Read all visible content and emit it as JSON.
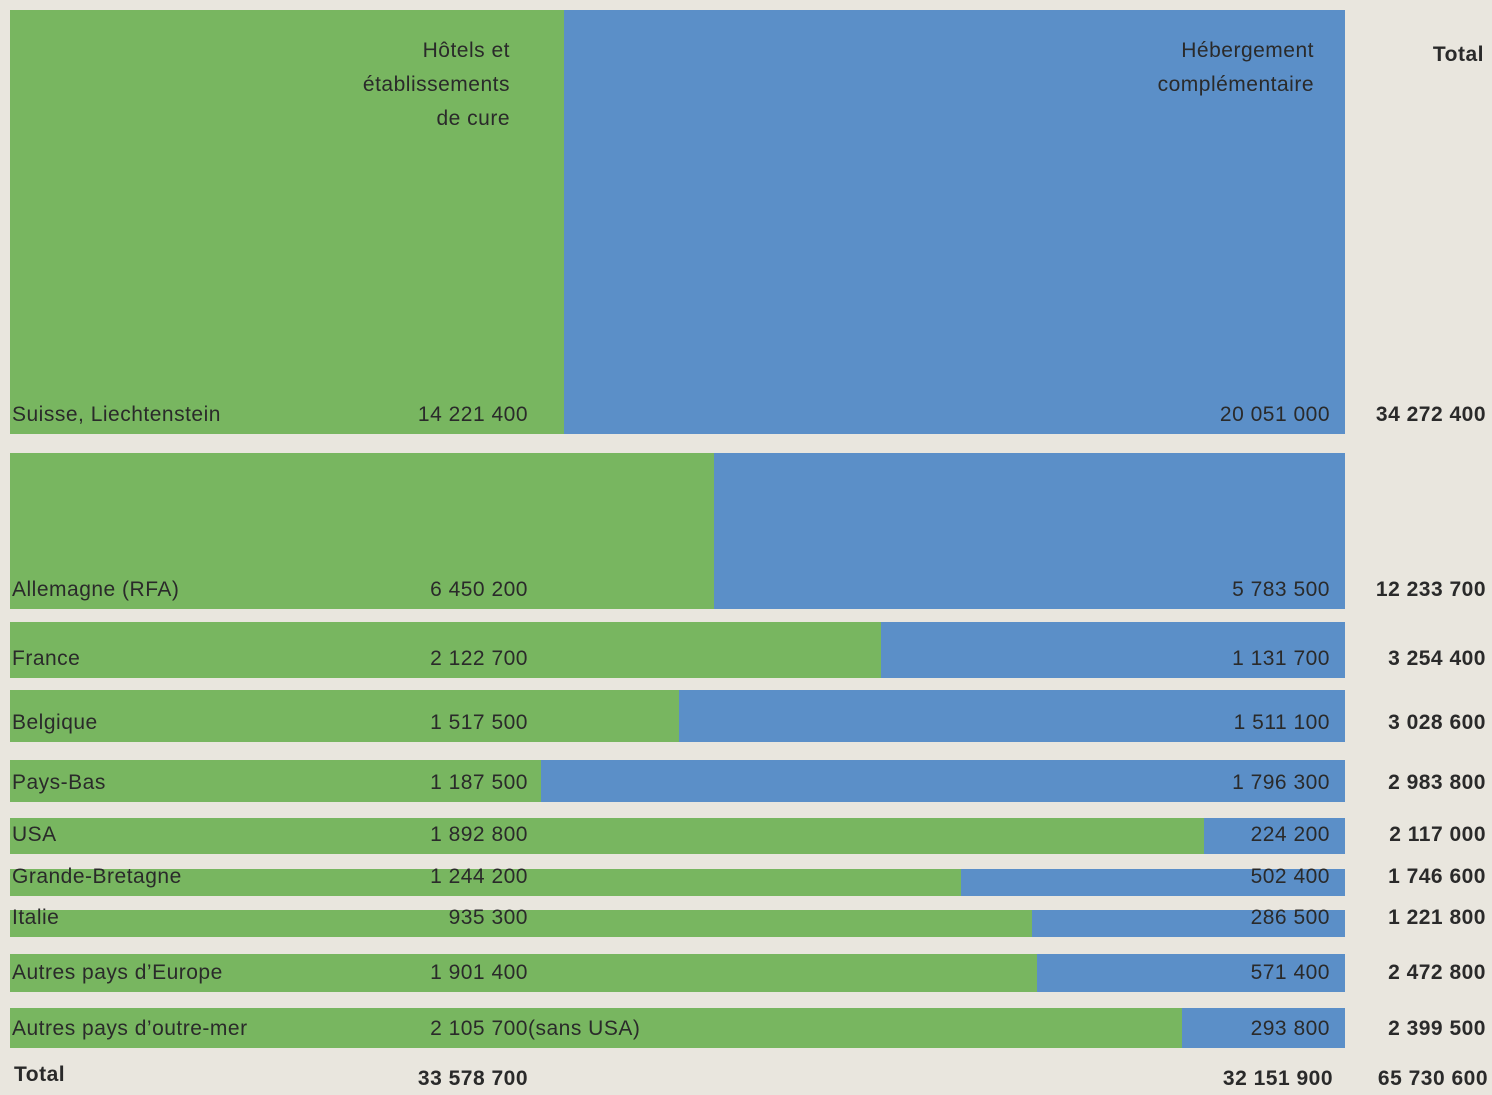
{
  "chart_data": {
    "type": "bar",
    "stacked": true,
    "orientation": "horizontal",
    "colors": {
      "hotels": "#78b660",
      "complementaire": "#5b8fc8",
      "background": "#e9e6de"
    },
    "headers": {
      "hotels": "Hôtels et\nétablissements\nde cure",
      "complementaire": "Hébergement\ncomplémentaire",
      "total": "Total"
    },
    "series": [
      {
        "name": "Hôtels et établissements de cure",
        "color": "#78b660"
      },
      {
        "name": "Hébergement complémentaire",
        "color": "#5b8fc8"
      }
    ],
    "rows": [
      {
        "country": "Suisse, Liechtenstein",
        "hotels": 14221400,
        "hotels_label": "14 221 400",
        "complementaire": 20051000,
        "complementaire_label": "20 051 000",
        "total": 34272400,
        "total_label": "34 272 400",
        "note": ""
      },
      {
        "country": "Allemagne (RFA)",
        "hotels": 6450200,
        "hotels_label": "6 450 200",
        "complementaire": 5783500,
        "complementaire_label": "5 783 500",
        "total": 12233700,
        "total_label": "12 233 700",
        "note": ""
      },
      {
        "country": "France",
        "hotels": 2122700,
        "hotels_label": "2 122 700",
        "complementaire": 1131700,
        "complementaire_label": "1 131 700",
        "total": 3254400,
        "total_label": "3 254 400",
        "note": ""
      },
      {
        "country": "Belgique",
        "hotels": 1517500,
        "hotels_label": "1 517 500",
        "complementaire": 1511100,
        "complementaire_label": "1 511 100",
        "total": 3028600,
        "total_label": "3 028 600",
        "note": ""
      },
      {
        "country": "Pays-Bas",
        "hotels": 1187500,
        "hotels_label": "1 187 500",
        "complementaire": 1796300,
        "complementaire_label": "1 796 300",
        "total": 2983800,
        "total_label": "2 983 800",
        "note": ""
      },
      {
        "country": "USA",
        "hotels": 1892800,
        "hotels_label": "1 892 800",
        "complementaire": 224200,
        "complementaire_label": "224 200",
        "total": 2117000,
        "total_label": "2 117 000",
        "note": ""
      },
      {
        "country": "Grande-Bretagne",
        "hotels": 1244200,
        "hotels_label": "1 244 200",
        "complementaire": 502400,
        "complementaire_label": "502 400",
        "total": 1746600,
        "total_label": "1 746 600",
        "note": ""
      },
      {
        "country": "Italie",
        "hotels": 935300,
        "hotels_label": "935 300",
        "complementaire": 286500,
        "complementaire_label": "286 500",
        "total": 1221800,
        "total_label": "1 221 800",
        "note": ""
      },
      {
        "country": "Autres pays d’Europe",
        "hotels": 1901400,
        "hotels_label": "1 901 400",
        "complementaire": 571400,
        "complementaire_label": "571 400",
        "total": 2472800,
        "total_label": "2 472 800",
        "note": ""
      },
      {
        "country": "Autres pays d’outre-mer",
        "hotels": 2105700,
        "hotels_label": "2 105 700",
        "complementaire": 293800,
        "complementaire_label": "293 800",
        "total": 2399500,
        "total_label": "2 399 500",
        "note": "(sans USA)"
      }
    ],
    "totals": {
      "label": "Total",
      "hotels": "33 578 700",
      "complementaire": "32 151 900",
      "total": "65 730 600"
    }
  }
}
